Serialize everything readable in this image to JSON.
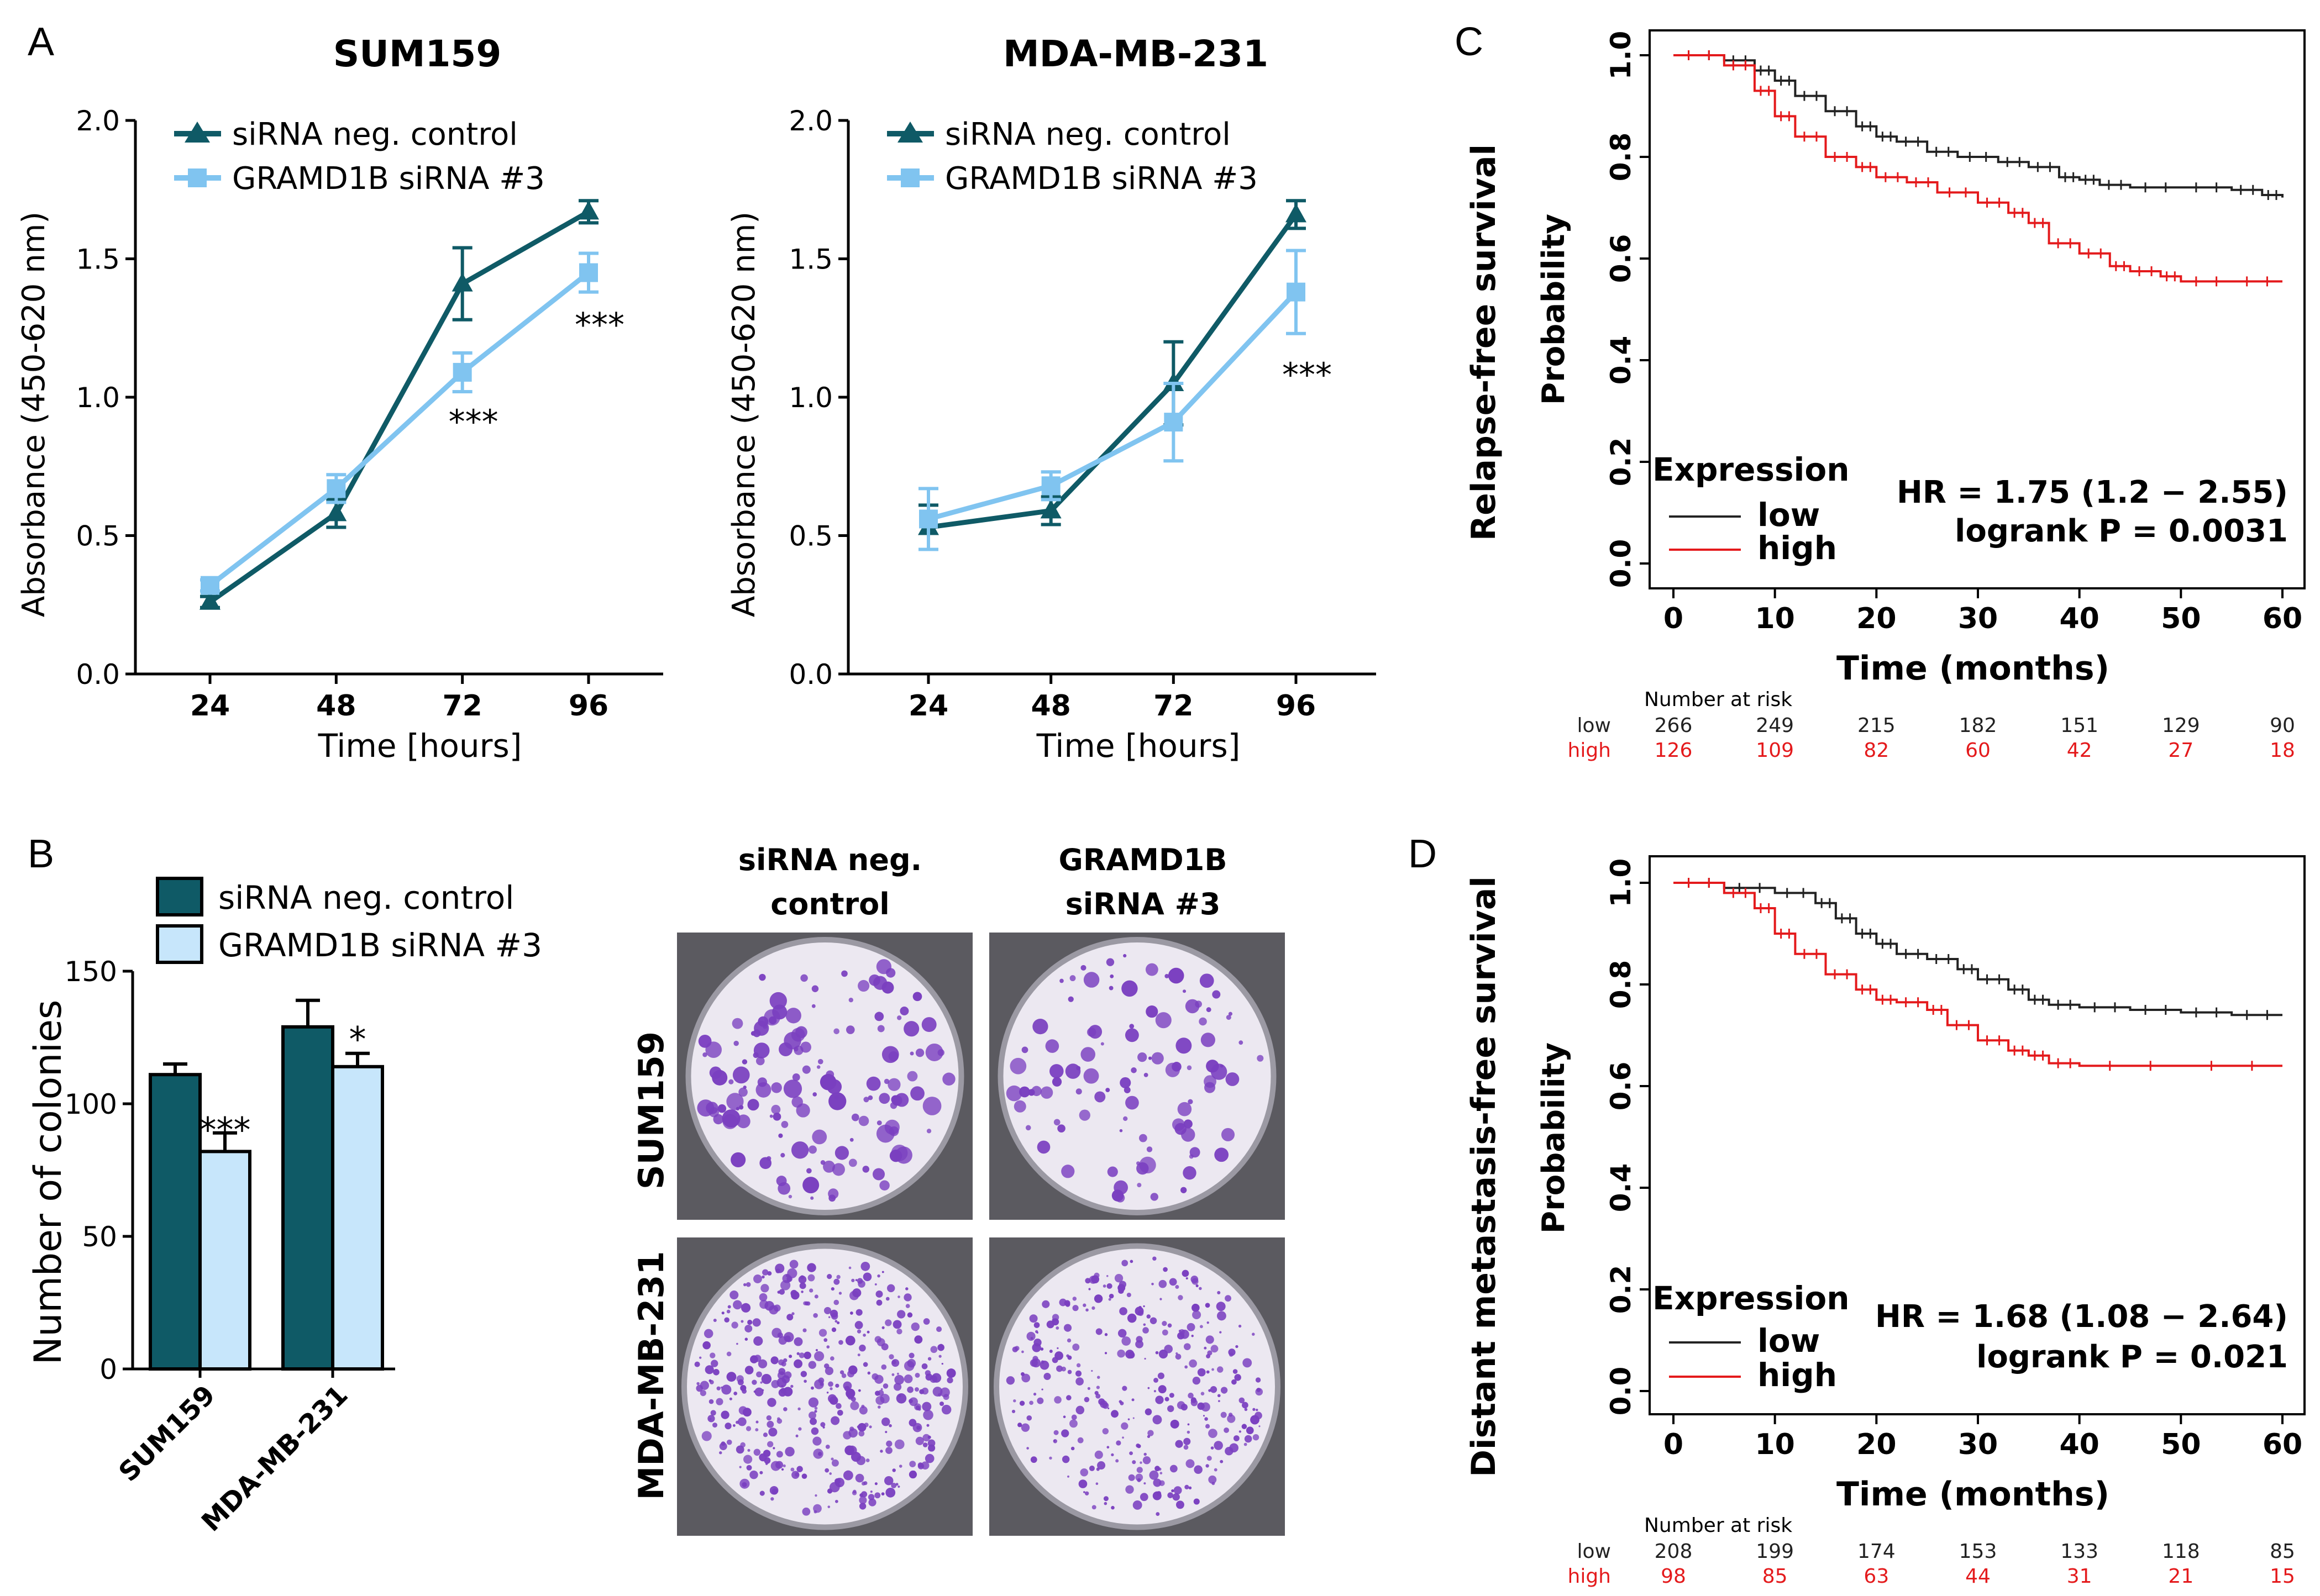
{
  "panels": {
    "A": "A",
    "B": "B",
    "C": "C",
    "D": "D"
  },
  "colors": {
    "dark": "#0f5a66",
    "light": "#80c4f0",
    "light_fill": "#c7e6fb",
    "km_low": "#222222",
    "km_high": "#e41a1c",
    "well_bg": "#ece8f1",
    "colony": "#7a3fc0",
    "plate": "#5b5a60"
  },
  "panelB_images": {
    "col1": [
      "siRNA neg.",
      "control"
    ],
    "col2": [
      "GRAMD1B",
      "siRNA #3"
    ],
    "row1": "SUM159",
    "row2": "MDA-MB-231"
  },
  "chart_data": [
    {
      "id": "A1",
      "type": "line",
      "title": "SUM159",
      "xlabel": "Time [hours]",
      "ylabel": "Absorbance (450-620 nm)",
      "categories": [
        "24",
        "48",
        "72",
        "96"
      ],
      "ylim": [
        0,
        2.0
      ],
      "yticks": [
        "0.0",
        "0.5",
        "1.0",
        "1.5",
        "2.0"
      ],
      "series": [
        {
          "name": "siRNA neg. control",
          "marker": "triangle",
          "values": [
            0.26,
            0.58,
            1.41,
            1.67
          ],
          "err": [
            0.02,
            0.05,
            0.13,
            0.04
          ]
        },
        {
          "name": "GRAMD1B siRNA #3",
          "marker": "square",
          "values": [
            0.32,
            0.67,
            1.09,
            1.45
          ],
          "err": [
            0.02,
            0.05,
            0.07,
            0.07
          ]
        }
      ],
      "annotations": [
        {
          "x": "72",
          "y": 0.93,
          "text": "***"
        },
        {
          "x": "96",
          "y": 1.28,
          "text": "***"
        }
      ]
    },
    {
      "id": "A2",
      "type": "line",
      "title": "MDA-MB-231",
      "xlabel": "Time [hours]",
      "ylabel": "Absorbance (450-620 nm)",
      "categories": [
        "24",
        "48",
        "72",
        "96"
      ],
      "ylim": [
        0,
        2.0
      ],
      "yticks": [
        "0.0",
        "0.5",
        "1.0",
        "1.5",
        "2.0"
      ],
      "series": [
        {
          "name": "siRNA neg. control",
          "marker": "triangle",
          "values": [
            0.53,
            0.59,
            1.05,
            1.66
          ],
          "err": [
            0.08,
            0.05,
            0.15,
            0.05
          ]
        },
        {
          "name": "GRAMD1B siRNA #3",
          "marker": "square",
          "values": [
            0.56,
            0.68,
            0.91,
            1.38
          ],
          "err": [
            0.11,
            0.05,
            0.14,
            0.15
          ]
        }
      ],
      "annotations": [
        {
          "x": "96",
          "y": 1.1,
          "text": "***"
        }
      ]
    },
    {
      "id": "B",
      "type": "bar",
      "ylabel": "Number of colonies",
      "categories": [
        "SUM159",
        "MDA-MB-231"
      ],
      "ylim": [
        0,
        150
      ],
      "yticks": [
        "0",
        "50",
        "100",
        "150"
      ],
      "series": [
        {
          "name": "siRNA neg. control",
          "values": [
            111,
            129
          ],
          "err": [
            4,
            10
          ]
        },
        {
          "name": "GRAMD1B siRNA #3",
          "values": [
            82,
            114
          ],
          "err": [
            7,
            5
          ]
        }
      ],
      "annotations": [
        {
          "category": "SUM159",
          "text": "***"
        },
        {
          "category": "MDA-MB-231",
          "text": "*"
        }
      ]
    },
    {
      "id": "C",
      "type": "line",
      "subtype": "kaplan-meier",
      "ylabel1": "Relapse-free survival",
      "ylabel2": "Probability",
      "xlabel": "Time (months)",
      "xlim": [
        0,
        60
      ],
      "ylim": [
        0,
        1.0
      ],
      "xticks": [
        "0",
        "10",
        "20",
        "30",
        "40",
        "50",
        "60"
      ],
      "yticks": [
        "0.0",
        "0.2",
        "0.4",
        "0.6",
        "0.8",
        "1.0"
      ],
      "legend_title": "Expression",
      "series": [
        {
          "name": "low",
          "points": [
            [
              0,
              1.0
            ],
            [
              5,
              0.99
            ],
            [
              8,
              0.97
            ],
            [
              10,
              0.95
            ],
            [
              12,
              0.92
            ],
            [
              15,
              0.89
            ],
            [
              18,
              0.86
            ],
            [
              20,
              0.84
            ],
            [
              22,
              0.83
            ],
            [
              25,
              0.81
            ],
            [
              28,
              0.8
            ],
            [
              32,
              0.79
            ],
            [
              35,
              0.78
            ],
            [
              38,
              0.76
            ],
            [
              40,
              0.755
            ],
            [
              42,
              0.745
            ],
            [
              45,
              0.74
            ],
            [
              50,
              0.74
            ],
            [
              55,
              0.735
            ],
            [
              58,
              0.725
            ],
            [
              60,
              0.72
            ]
          ]
        },
        {
          "name": "high",
          "points": [
            [
              0,
              1.0
            ],
            [
              5,
              0.98
            ],
            [
              8,
              0.93
            ],
            [
              10,
              0.88
            ],
            [
              12,
              0.84
            ],
            [
              15,
              0.8
            ],
            [
              18,
              0.78
            ],
            [
              20,
              0.76
            ],
            [
              23,
              0.75
            ],
            [
              26,
              0.73
            ],
            [
              30,
              0.71
            ],
            [
              33,
              0.69
            ],
            [
              35,
              0.67
            ],
            [
              37,
              0.63
            ],
            [
              40,
              0.61
            ],
            [
              43,
              0.585
            ],
            [
              45,
              0.575
            ],
            [
              48,
              0.565
            ],
            [
              50,
              0.555
            ],
            [
              55,
              0.555
            ],
            [
              60,
              0.555
            ]
          ]
        }
      ],
      "hr_text": "HR = 1.75 (1.2 − 2.55)",
      "p_text": "logrank P = 0.0031",
      "risk_title": "Number at risk",
      "risk_labels": [
        "low",
        "high"
      ],
      "risk_low": [
        "266",
        "249",
        "215",
        "182",
        "151",
        "129",
        "90"
      ],
      "risk_high": [
        "126",
        "109",
        "82",
        "60",
        "42",
        "27",
        "18"
      ]
    },
    {
      "id": "D",
      "type": "line",
      "subtype": "kaplan-meier",
      "ylabel1": "Distant metastasis-free survival",
      "ylabel2": "Probability",
      "xlabel": "Time (months)",
      "xlim": [
        0,
        60
      ],
      "ylim": [
        0,
        1.0
      ],
      "xticks": [
        "0",
        "10",
        "20",
        "30",
        "40",
        "50",
        "60"
      ],
      "yticks": [
        "0.0",
        "0.2",
        "0.4",
        "0.6",
        "0.8",
        "1.0"
      ],
      "legend_title": "Expression",
      "series": [
        {
          "name": "low",
          "points": [
            [
              0,
              1.0
            ],
            [
              5,
              0.99
            ],
            [
              10,
              0.98
            ],
            [
              14,
              0.96
            ],
            [
              16,
              0.93
            ],
            [
              18,
              0.9
            ],
            [
              20,
              0.88
            ],
            [
              22,
              0.86
            ],
            [
              25,
              0.85
            ],
            [
              28,
              0.83
            ],
            [
              30,
              0.81
            ],
            [
              33,
              0.79
            ],
            [
              35,
              0.77
            ],
            [
              37,
              0.76
            ],
            [
              40,
              0.755
            ],
            [
              45,
              0.75
            ],
            [
              50,
              0.745
            ],
            [
              55,
              0.74
            ],
            [
              60,
              0.74
            ]
          ]
        },
        {
          "name": "high",
          "points": [
            [
              0,
              1.0
            ],
            [
              5,
              0.98
            ],
            [
              8,
              0.95
            ],
            [
              10,
              0.9
            ],
            [
              12,
              0.86
            ],
            [
              15,
              0.82
            ],
            [
              18,
              0.79
            ],
            [
              20,
              0.77
            ],
            [
              22,
              0.765
            ],
            [
              25,
              0.75
            ],
            [
              27,
              0.72
            ],
            [
              30,
              0.69
            ],
            [
              33,
              0.67
            ],
            [
              35,
              0.66
            ],
            [
              37,
              0.645
            ],
            [
              40,
              0.64
            ],
            [
              50,
              0.64
            ],
            [
              60,
              0.64
            ]
          ]
        }
      ],
      "hr_text": "HR = 1.68 (1.08 − 2.64)",
      "p_text": "logrank P = 0.021",
      "risk_title": "Number at risk",
      "risk_labels": [
        "low",
        "high"
      ],
      "risk_low": [
        "208",
        "199",
        "174",
        "153",
        "133",
        "118",
        "85"
      ],
      "risk_high": [
        "98",
        "85",
        "63",
        "44",
        "31",
        "21",
        "15"
      ]
    }
  ]
}
